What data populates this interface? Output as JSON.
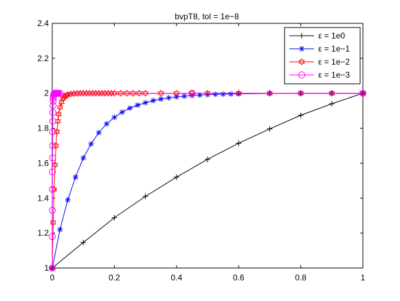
{
  "chart_data": {
    "type": "line",
    "title": "bvpT8, tol = 1e−8",
    "xlabel": "",
    "ylabel": "",
    "xlim": [
      0,
      1
    ],
    "ylim": [
      1,
      2.4
    ],
    "xticks": [
      "0",
      "0.2",
      "0.4",
      "0.6",
      "0.8",
      "1"
    ],
    "yticks": [
      "1",
      "1.2",
      "1.4",
      "1.6",
      "1.8",
      "2",
      "2.2",
      "2.4"
    ],
    "grid": false,
    "legend_position": "top-right",
    "series": [
      {
        "name": "ε = 1e0",
        "color": "#000000",
        "marker": "plus",
        "x": [
          0,
          0.1,
          0.2,
          0.3,
          0.4,
          0.5,
          0.6,
          0.7,
          0.8,
          0.9,
          1.0
        ],
        "y": [
          1.0,
          1.146,
          1.288,
          1.41,
          1.52,
          1.622,
          1.714,
          1.796,
          1.874,
          1.94,
          2.0
        ]
      },
      {
        "name": "ε = 1e−1",
        "color": "#0000ff",
        "marker": "star",
        "x": [
          0,
          0.025,
          0.05,
          0.075,
          0.1,
          0.125,
          0.15,
          0.175,
          0.2,
          0.225,
          0.25,
          0.275,
          0.3,
          0.325,
          0.35,
          0.375,
          0.4,
          0.425,
          0.45,
          0.475,
          0.5,
          0.525,
          0.55,
          0.575,
          0.6,
          0.7,
          0.8,
          0.9,
          1.0
        ],
        "y": [
          1.0,
          1.22,
          1.39,
          1.52,
          1.63,
          1.71,
          1.775,
          1.825,
          1.862,
          1.892,
          1.915,
          1.932,
          1.946,
          1.958,
          1.967,
          1.974,
          1.979,
          1.983,
          1.987,
          1.99,
          1.992,
          1.994,
          1.995,
          1.996,
          1.997,
          1.999,
          2.0,
          2.0,
          2.0
        ]
      },
      {
        "name": "ε = 1e−2",
        "color": "#ff0000",
        "marker": "hexagram",
        "x": [
          0,
          0.003,
          0.006,
          0.009,
          0.012,
          0.015,
          0.018,
          0.021,
          0.025,
          0.03,
          0.035,
          0.04,
          0.045,
          0.05,
          0.06,
          0.07,
          0.08,
          0.09,
          0.1,
          0.11,
          0.12,
          0.13,
          0.14,
          0.15,
          0.16,
          0.17,
          0.18,
          0.19,
          0.2,
          0.22,
          0.24,
          0.26,
          0.28,
          0.3,
          0.35,
          0.4,
          0.45,
          0.5,
          0.6,
          0.7,
          0.8,
          0.9,
          1.0
        ],
        "y": [
          1.0,
          1.26,
          1.45,
          1.59,
          1.7,
          1.78,
          1.84,
          1.88,
          1.92,
          1.95,
          1.97,
          1.98,
          1.987,
          1.992,
          1.996,
          1.998,
          1.999,
          2.0,
          2.0,
          2.0,
          2.0,
          2.0,
          2.0,
          2.0,
          2.0,
          2.0,
          2.0,
          2.0,
          2.0,
          2.0,
          2.0,
          2.0,
          2.0,
          2.0,
          2.0,
          2.0,
          2.0,
          2.0,
          2.0,
          2.0,
          2.0,
          2.0,
          2.0
        ]
      },
      {
        "name": "ε = 1e−3",
        "color": "#ff00ff",
        "marker": "circle",
        "x": [
          0,
          0.0002,
          0.0004,
          0.0006,
          0.0008,
          0.001,
          0.0012,
          0.0015,
          0.0018,
          0.0022,
          0.0026,
          0.003,
          0.0035,
          0.004,
          0.005,
          0.006,
          0.007,
          0.008,
          0.009,
          0.01,
          0.012,
          0.014,
          0.016,
          0.018,
          0.02,
          0.025,
          0.45,
          1.0
        ],
        "y": [
          1.0,
          1.18,
          1.33,
          1.45,
          1.55,
          1.63,
          1.7,
          1.78,
          1.84,
          1.89,
          1.93,
          1.955,
          1.972,
          1.983,
          1.993,
          1.997,
          1.999,
          2.0,
          2.0,
          2.0,
          2.0,
          2.0,
          2.0,
          2.0,
          2.0,
          2.0,
          2.0,
          2.0
        ]
      }
    ]
  }
}
